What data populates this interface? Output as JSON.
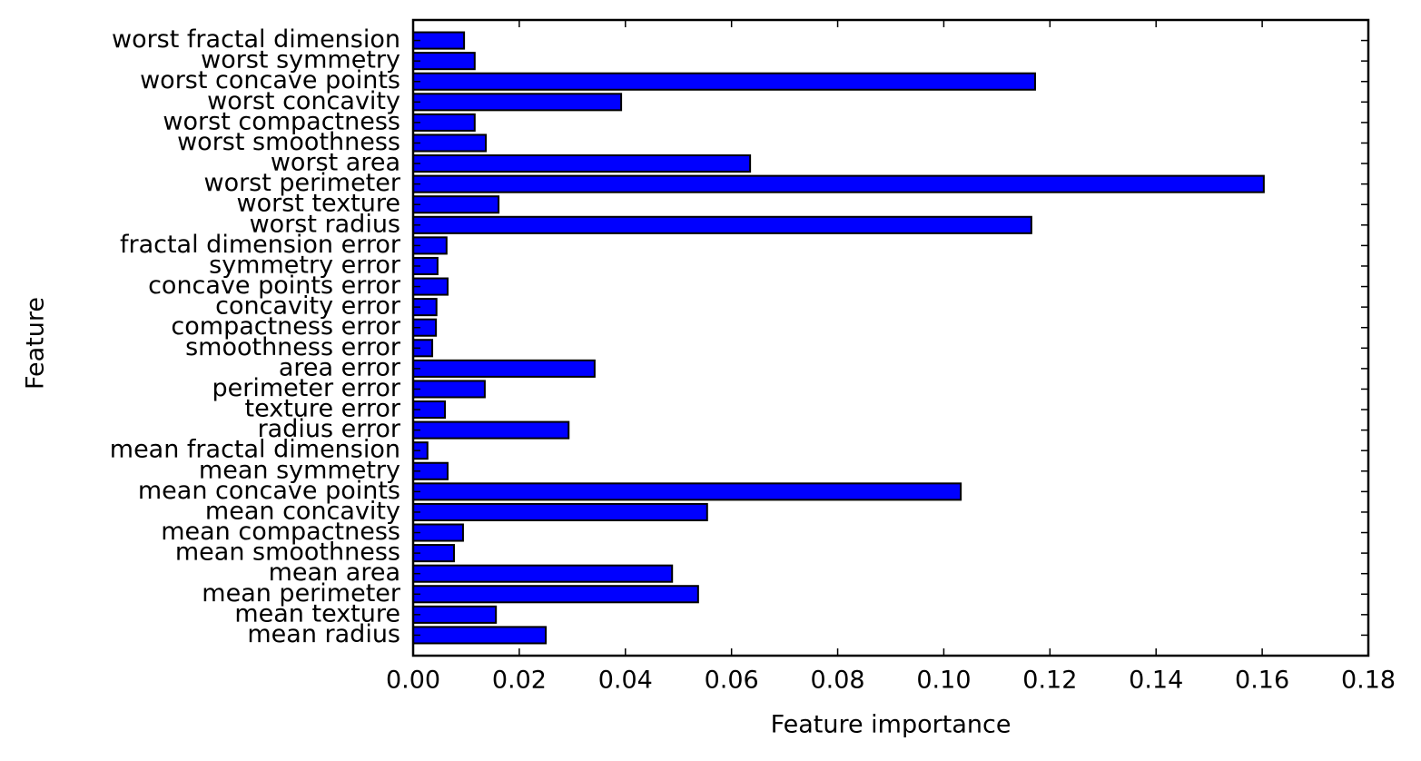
{
  "chart_data": {
    "type": "barh",
    "xlabel": "Feature importance",
    "ylabel": "Feature",
    "categories": [
      "mean radius",
      "mean texture",
      "mean perimeter",
      "mean area",
      "mean smoothness",
      "mean compactness",
      "mean concavity",
      "mean concave points",
      "mean symmetry",
      "mean fractal dimension",
      "radius error",
      "texture error",
      "perimeter error",
      "area error",
      "smoothness error",
      "compactness error",
      "concavity error",
      "concave points error",
      "symmetry error",
      "fractal dimension error",
      "worst radius",
      "worst texture",
      "worst perimeter",
      "worst area",
      "worst smoothness",
      "worst compactness",
      "worst concavity",
      "worst concave points",
      "worst symmetry",
      "worst fractal dimension"
    ],
    "values": [
      0.025,
      0.0156,
      0.0537,
      0.0488,
      0.0077,
      0.0094,
      0.0554,
      0.1032,
      0.0065,
      0.0027,
      0.0293,
      0.006,
      0.0135,
      0.0342,
      0.0036,
      0.0043,
      0.0044,
      0.0065,
      0.0046,
      0.0063,
      0.1165,
      0.0161,
      0.1603,
      0.0635,
      0.0137,
      0.0116,
      0.0392,
      0.1172,
      0.0116,
      0.0096
    ],
    "color": "#0000ff",
    "xlim": [
      0,
      0.18
    ],
    "xticks": [
      {
        "value": 0,
        "label": "0.00"
      },
      {
        "value": 0.02,
        "label": "0.02"
      },
      {
        "value": 0.04,
        "label": "0.04"
      },
      {
        "value": 0.06,
        "label": "0.06"
      },
      {
        "value": 0.08,
        "label": "0.08"
      },
      {
        "value": 0.1,
        "label": "0.10"
      },
      {
        "value": 0.12,
        "label": "0.12"
      },
      {
        "value": 0.14,
        "label": "0.14"
      },
      {
        "value": 0.16,
        "label": "0.16"
      },
      {
        "value": 0.18,
        "label": "0.18"
      }
    ],
    "grid": false
  }
}
